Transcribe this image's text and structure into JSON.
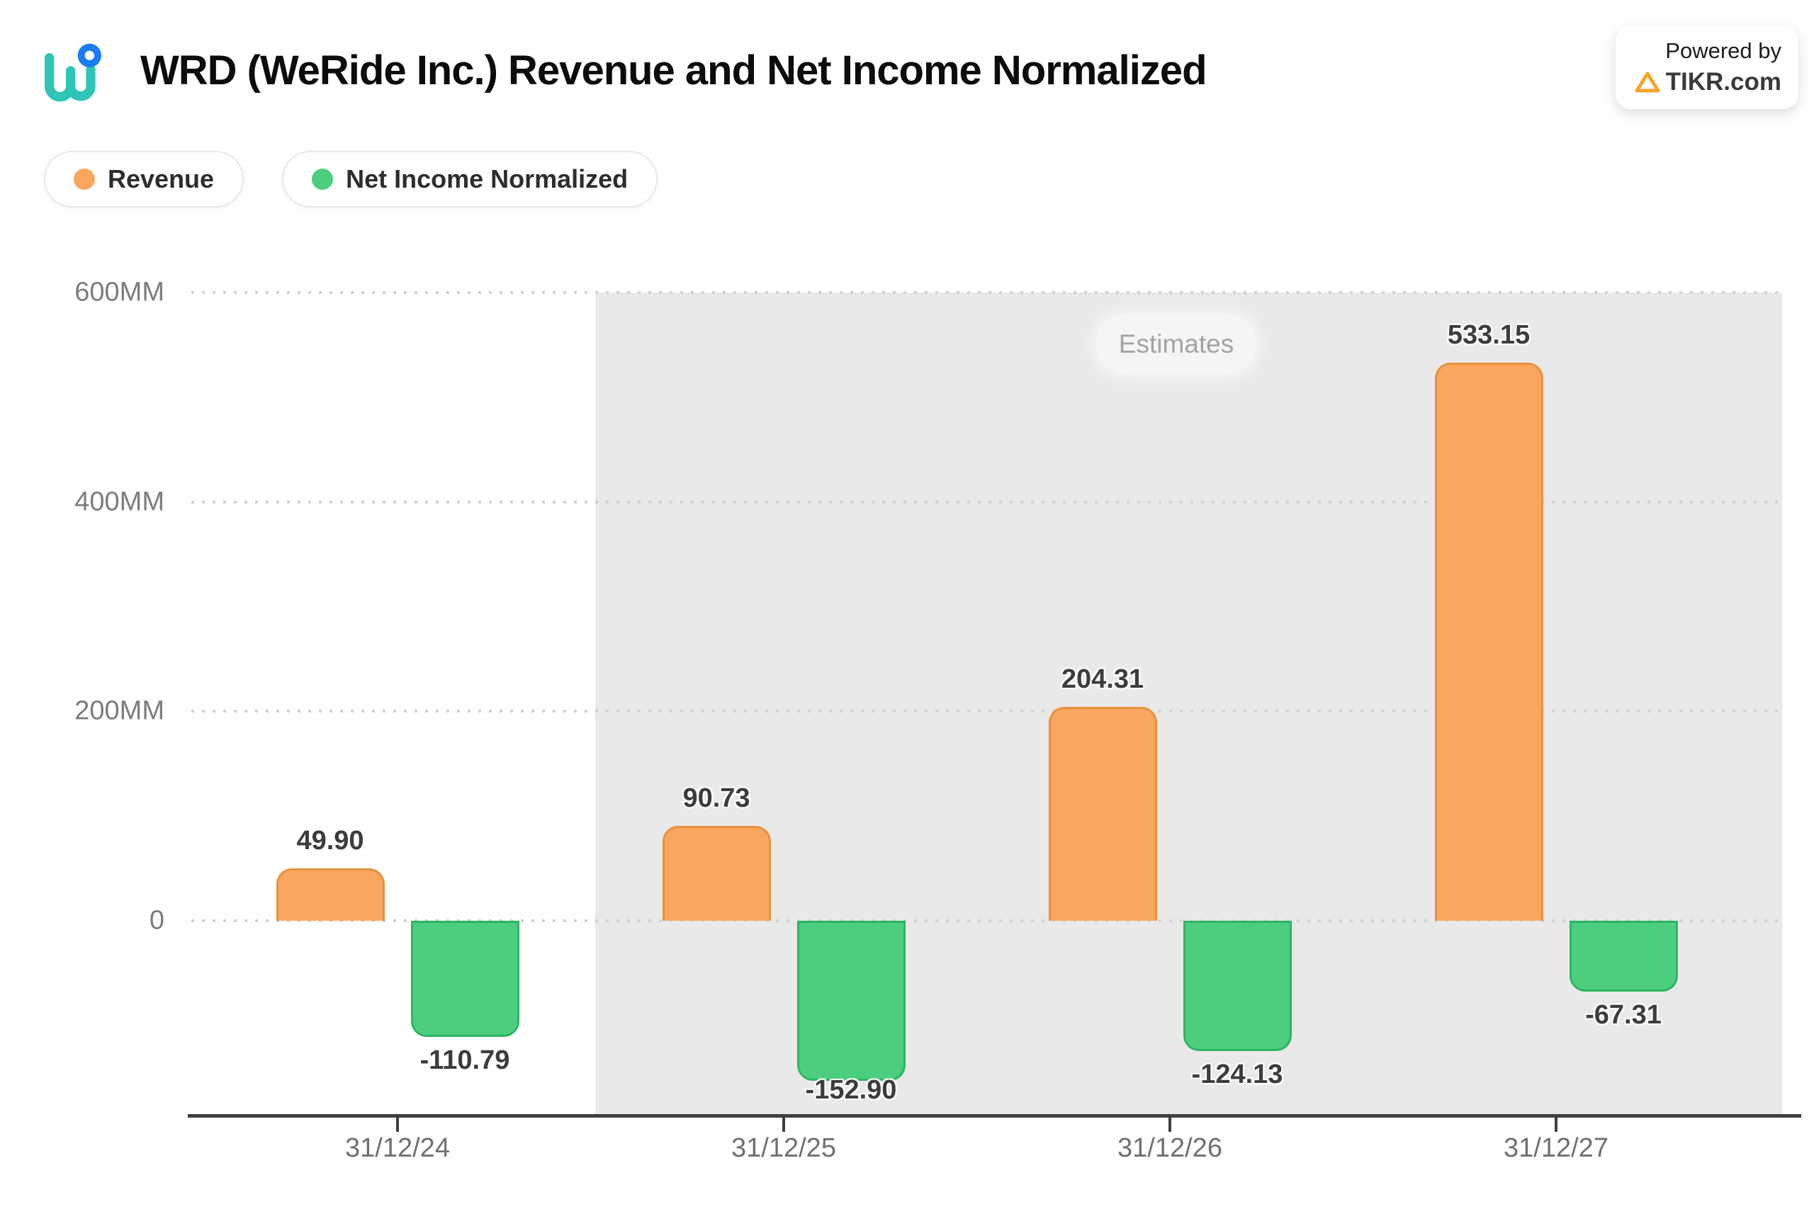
{
  "header": {
    "title": "WRD (WeRide Inc.) Revenue and Net Income Normalized",
    "powered_by": {
      "line1": "Powered by",
      "line2": "TIKR.com"
    }
  },
  "legend": {
    "items": [
      {
        "label": "Revenue",
        "color": "#f9a75f"
      },
      {
        "label": "Net Income Normalized",
        "color": "#4cce7e"
      }
    ]
  },
  "estimates_label": "Estimates",
  "chart_data": {
    "type": "bar",
    "title": "WRD (WeRide Inc.) Revenue and Net Income Normalized",
    "categories": [
      "31/12/24",
      "31/12/25",
      "31/12/26",
      "31/12/27"
    ],
    "series": [
      {
        "name": "Revenue",
        "values": [
          49.9,
          90.73,
          204.31,
          533.15
        ],
        "labels": [
          "49.90",
          "90.73",
          "204.31",
          "533.15"
        ],
        "fill": "#f9a75f",
        "border": "#e8913e"
      },
      {
        "name": "Net Income Normalized",
        "values": [
          -110.79,
          -152.9,
          -124.13,
          -67.31
        ],
        "labels": [
          "-110.79",
          "-152.90",
          "-124.13",
          "-67.31"
        ],
        "fill": "#4cce7e",
        "border": "#2db563"
      }
    ],
    "unit": "MM",
    "y_ticks": [
      "600MM",
      "400MM",
      "200MM",
      "0"
    ],
    "y_grid_values": [
      600,
      400,
      200,
      0
    ],
    "ylim": [
      -185,
      600
    ],
    "grid": "dotted-horizontal",
    "legend_position": "top-left",
    "estimates_start_after_index": 0,
    "estimates_badge": "Estimates"
  },
  "colors": {
    "estimates_region": "#e9e9e9",
    "gridline": "#d2d2d2",
    "axis": "#3f3f3f",
    "value_label": "#3c3c3c",
    "tikr_orange": "#f5a52b",
    "logo_teal": "#2ec5b6",
    "logo_blue": "#1c7df2"
  }
}
